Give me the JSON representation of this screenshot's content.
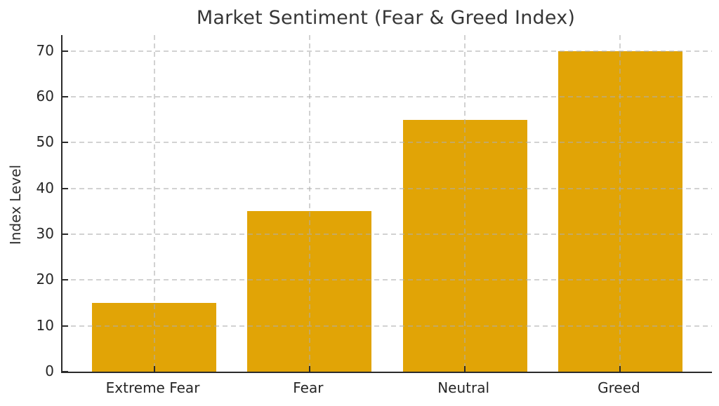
{
  "chart_data": {
    "type": "bar",
    "title": "Market Sentiment (Fear & Greed Index)",
    "categories": [
      "Extreme Fear",
      "Fear",
      "Neutral",
      "Greed"
    ],
    "values": [
      15,
      35,
      55,
      70
    ],
    "xlabel": "",
    "ylabel": "Index Level",
    "ylim": [
      0,
      73.5
    ],
    "yticks": [
      0,
      10,
      20,
      30,
      40,
      50,
      60,
      70
    ],
    "grid": true,
    "grid_style": "dashed",
    "grid_over_bars": true,
    "legend_position": "none",
    "bar_color": "#E1A406",
    "spine_color": "#2b2b2b",
    "text_color": "#2e2e2e",
    "background_color": "#ffffff"
  }
}
